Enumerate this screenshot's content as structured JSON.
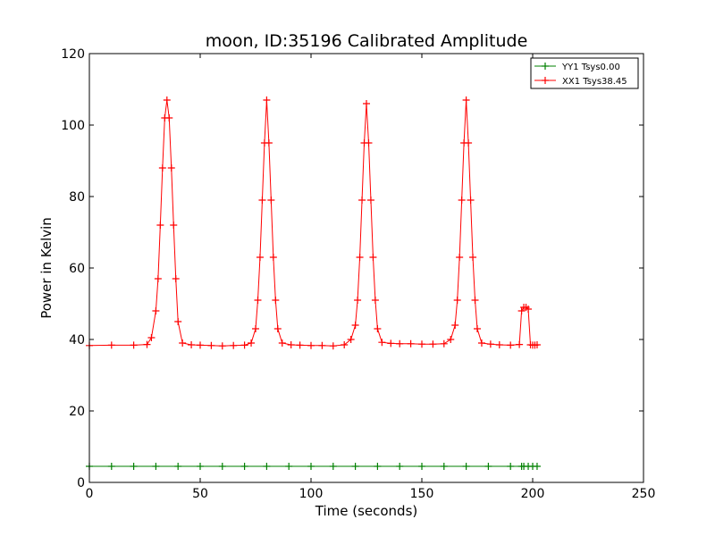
{
  "chart_data": {
    "type": "line",
    "title": "moon, ID:35196 Calibrated Amplitude",
    "xlabel": "Time (seconds)",
    "ylabel": "Power in Kelvin",
    "xlim": [
      0,
      250
    ],
    "ylim": [
      0,
      120
    ],
    "xticks": [
      0,
      50,
      100,
      150,
      200,
      250
    ],
    "yticks": [
      0,
      20,
      40,
      60,
      80,
      100,
      120
    ],
    "grid": false,
    "legend_position": "top-right",
    "series": [
      {
        "name": "YY1 Tsys0.00",
        "color": "#008000",
        "marker": "+",
        "x": [
          0,
          10,
          20,
          30,
          40,
          50,
          60,
          70,
          80,
          90,
          100,
          110,
          120,
          130,
          140,
          150,
          160,
          170,
          180,
          190,
          195,
          196,
          198,
          200,
          202
        ],
        "y": [
          4.5,
          4.5,
          4.5,
          4.5,
          4.5,
          4.5,
          4.5,
          4.5,
          4.5,
          4.5,
          4.5,
          4.5,
          4.5,
          4.5,
          4.5,
          4.5,
          4.5,
          4.5,
          4.5,
          4.5,
          4.5,
          4.5,
          4.5,
          4.5,
          4.5
        ]
      },
      {
        "name": "XX1 Tsys38.45",
        "color": "#ff0000",
        "marker": "+",
        "x": [
          0,
          10,
          20,
          26,
          28,
          30,
          31,
          32,
          33,
          34,
          35,
          36,
          37,
          38,
          39,
          40,
          42,
          46,
          50,
          55,
          60,
          65,
          70,
          73,
          75,
          76,
          77,
          78,
          79,
          80,
          81,
          82,
          83,
          84,
          85,
          87,
          91,
          95,
          100,
          105,
          110,
          115,
          118,
          120,
          121,
          122,
          123,
          124,
          125,
          126,
          127,
          128,
          129,
          130,
          132,
          136,
          140,
          145,
          150,
          155,
          160,
          163,
          165,
          166,
          167,
          168,
          169,
          170,
          171,
          172,
          173,
          174,
          175,
          177,
          181,
          185,
          190,
          194,
          195,
          196,
          197,
          198,
          199,
          200,
          201,
          202
        ],
        "y": [
          38.3,
          38.4,
          38.4,
          38.6,
          40.5,
          48,
          57,
          72,
          88,
          102,
          107,
          102,
          88,
          72,
          57,
          45,
          39,
          38.5,
          38.4,
          38.3,
          38.2,
          38.3,
          38.4,
          39,
          43,
          51,
          63,
          79,
          95,
          107,
          95,
          79,
          63,
          51,
          43,
          39,
          38.5,
          38.4,
          38.3,
          38.3,
          38.2,
          38.5,
          40,
          44,
          51,
          63,
          79,
          95,
          106,
          95,
          79,
          63,
          51,
          43,
          39.2,
          38.9,
          38.8,
          38.8,
          38.7,
          38.7,
          38.8,
          40,
          44,
          51,
          63,
          79,
          95,
          107,
          95,
          79,
          63,
          51,
          43,
          39,
          38.7,
          38.5,
          38.4,
          38.6,
          48,
          49,
          49,
          48.5,
          38.5,
          38.4,
          38.4,
          38.5
        ]
      }
    ]
  }
}
